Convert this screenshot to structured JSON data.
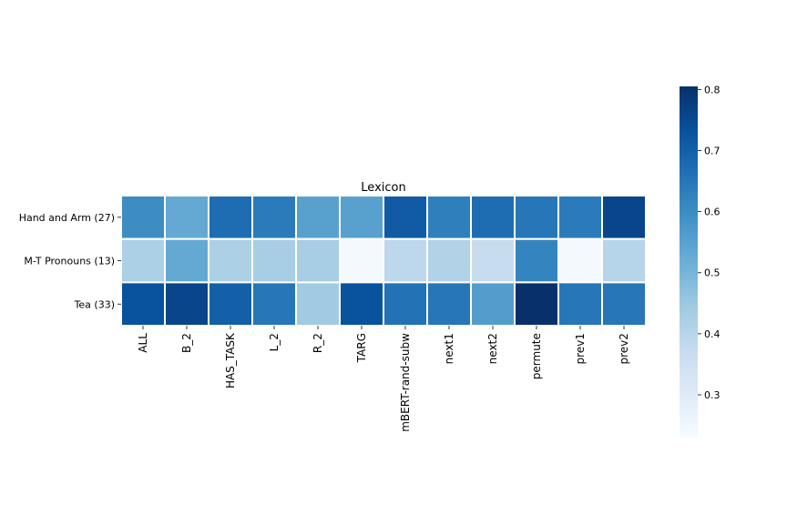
{
  "chart_data": {
    "type": "heatmap",
    "title": "Lexicon",
    "xlabel": "",
    "ylabel": "",
    "columns": [
      "ALL",
      "B_2",
      "HAS_TASK",
      "L_2",
      "R_2",
      "TARG",
      "mBERT-rand-subw",
      "next1",
      "next2",
      "permute",
      "prev1",
      "prev2"
    ],
    "rows": [
      "Hand and Arm (27)",
      "M-T Pronouns (13)",
      "Tea (33)"
    ],
    "values": [
      [
        0.6,
        0.53,
        0.67,
        0.64,
        0.55,
        0.55,
        0.71,
        0.63,
        0.67,
        0.65,
        0.64,
        0.76
      ],
      [
        0.42,
        0.53,
        0.42,
        0.43,
        0.43,
        0.24,
        0.39,
        0.41,
        0.37,
        0.62,
        0.24,
        0.4
      ],
      [
        0.73,
        0.76,
        0.7,
        0.65,
        0.44,
        0.73,
        0.66,
        0.65,
        0.56,
        0.81,
        0.65,
        0.65
      ]
    ],
    "colorbar": {
      "min": 0.23,
      "max": 0.805,
      "ticks": [
        0.3,
        0.4,
        0.5,
        0.6,
        0.7,
        0.8
      ],
      "tick_labels": [
        "0.3",
        "0.4",
        "0.5",
        "0.6",
        "0.7",
        "0.8"
      ]
    },
    "colormap": "Blues",
    "cell_border_color": "#ffffff"
  }
}
